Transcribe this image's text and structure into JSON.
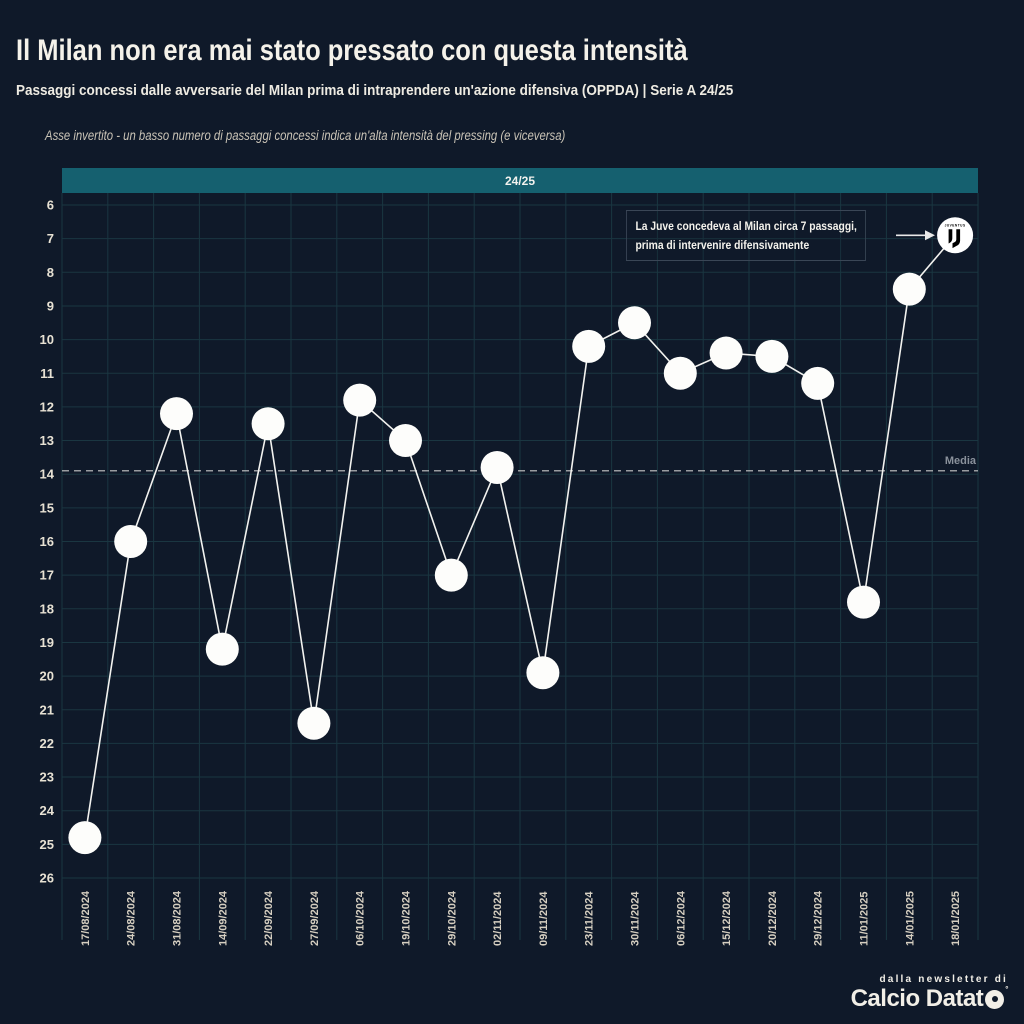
{
  "header": {
    "title": "Il Milan non era mai stato pressato con questa intensità",
    "subtitle": "Passaggi concessi dalle avversarie del Milan prima di intraprendere un'azione difensiva (OPPDA) | Serie A 24/25",
    "note": "Asse invertito - un basso numero di passaggi concessi indica un'alta intensità del pressing (e viceversa)"
  },
  "banner": {
    "label": "24/25"
  },
  "chart_data": {
    "type": "line",
    "title": "Il Milan non era mai stato pressato con questa intensità",
    "x": [
      "17/08/2024",
      "24/08/2024",
      "31/08/2024",
      "14/09/2024",
      "22/09/2024",
      "27/09/2024",
      "06/10/2024",
      "19/10/2024",
      "29/10/2024",
      "02/11/2024",
      "09/11/2024",
      "23/11/2024",
      "30/11/2024",
      "06/12/2024",
      "15/12/2024",
      "20/12/2024",
      "29/12/2024",
      "11/01/2025",
      "14/01/2025",
      "18/01/2025"
    ],
    "series": [
      {
        "name": "24/25",
        "values": [
          24.8,
          16.0,
          12.2,
          19.2,
          12.5,
          21.4,
          11.8,
          13.0,
          17.0,
          13.8,
          19.9,
          10.2,
          9.5,
          11.0,
          10.4,
          10.5,
          11.3,
          17.8,
          8.5,
          6.9
        ]
      }
    ],
    "xlabel": "",
    "ylabel": "",
    "y_axis": {
      "min": 6,
      "max": 26,
      "step": 1,
      "inverted": true
    },
    "average": {
      "label": "Media",
      "value": 13.9
    },
    "grid": true,
    "legend_position": "none",
    "marker": "white-circle",
    "last_point_marker": "juventus-crest"
  },
  "annotation": {
    "lines": [
      "La Juve concedeva al Milan circa 7 passaggi,",
      "prima di intervenire difensivamente"
    ]
  },
  "juventus_logo": {
    "wordmark": "JUVENTUS"
  },
  "footer": {
    "tagline": "dalla newsletter di",
    "brand_text": "Calcio Datat",
    "brand_suffix_icon": "football-disc-icon",
    "registered_mark": "°"
  },
  "colors": {
    "background": "#0f1929",
    "banner": "#15606f",
    "grid": "#1a3641",
    "line": "#f2f2ef",
    "marker": "#fdfdfb",
    "media_line": "#c7c7c7",
    "media_label": "#8a919b",
    "axis_label": "#e8e2d4",
    "x_label": "#d6cfc1",
    "annotation_border": "#3a4656",
    "arrow": "#e9e9e9"
  }
}
